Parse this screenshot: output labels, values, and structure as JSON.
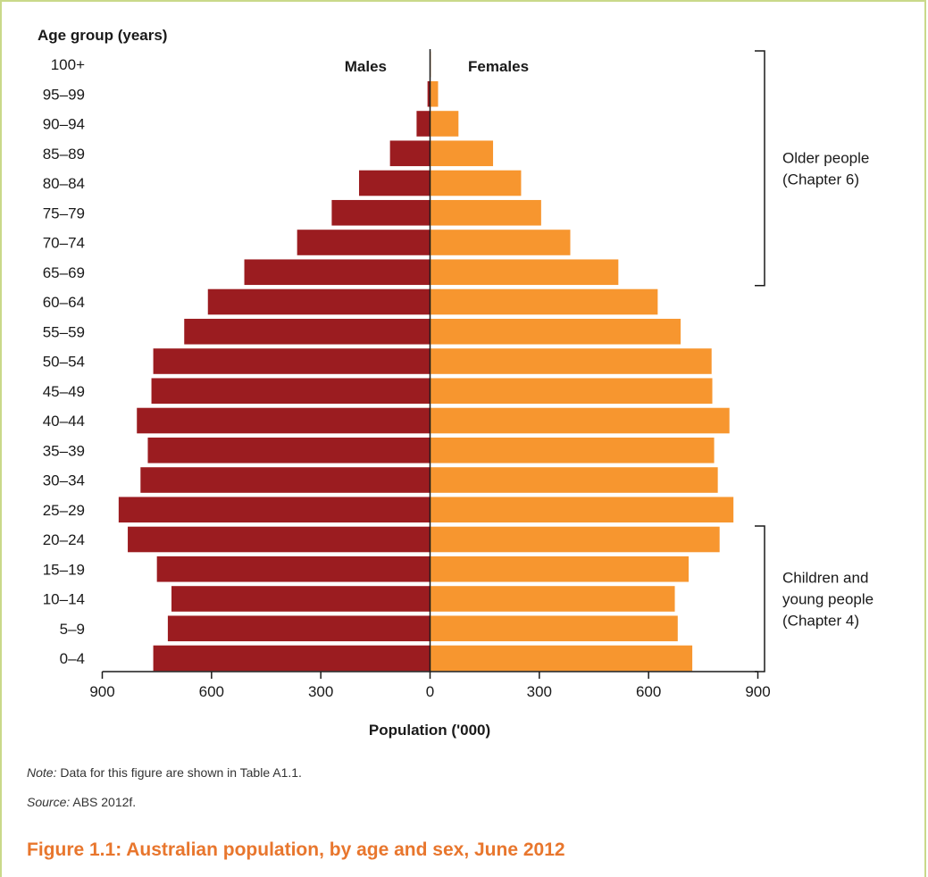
{
  "chart_data": {
    "type": "bar",
    "orientation": "horizontal",
    "layout": "population-pyramid",
    "title": "",
    "ylabel": "Age group (years)",
    "xlabel": "Population ('000)",
    "xlim": [
      -900,
      900
    ],
    "x_ticks": [
      900,
      600,
      300,
      0,
      300,
      600,
      900
    ],
    "categories": [
      "0–4",
      "5–9",
      "10–14",
      "15–19",
      "20–24",
      "25–29",
      "30–34",
      "35–39",
      "40–44",
      "45–49",
      "50–54",
      "55–59",
      "60–64",
      "65–69",
      "70–74",
      "75–79",
      "80–84",
      "85–89",
      "90–94",
      "95–99",
      "100+"
    ],
    "series": [
      {
        "name": "Males",
        "color": "#9b1c20",
        "values": [
          760,
          720,
          710,
          750,
          830,
          855,
          795,
          775,
          805,
          765,
          760,
          675,
          610,
          510,
          365,
          270,
          195,
          110,
          37,
          7,
          1
        ]
      },
      {
        "name": "Females",
        "color": "#f7962f",
        "values": [
          720,
          680,
          672,
          710,
          795,
          833,
          790,
          780,
          822,
          775,
          773,
          688,
          625,
          517,
          385,
          305,
          250,
          173,
          78,
          22,
          2
        ]
      }
    ],
    "brackets": [
      {
        "label": [
          "Older people",
          "(Chapter 6)"
        ],
        "from": "65–69",
        "to": "100+"
      },
      {
        "label": [
          "Children and",
          "young people",
          "(Chapter 4)"
        ],
        "from": "0–4",
        "to": "20–24"
      }
    ],
    "grid": false
  },
  "note": {
    "label": "Note:",
    "text": " Data for this figure are shown in Table A1.1."
  },
  "source": {
    "label": "Source:",
    "text": " ABS 2012f."
  },
  "caption": "Figure 1.1: Australian population, by age and sex, June 2012"
}
